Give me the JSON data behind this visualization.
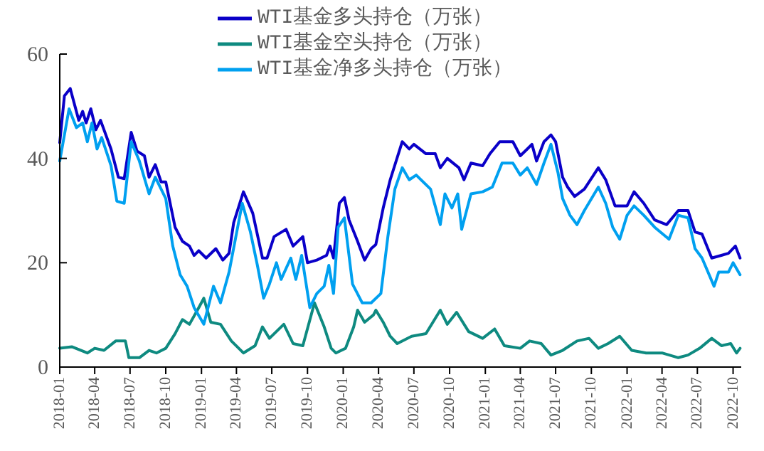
{
  "chart_data": {
    "type": "line",
    "ylim": [
      0,
      60
    ],
    "yticks": [
      0,
      20,
      40,
      60
    ],
    "xlim": [
      "2018-01-01",
      "2022-10-22"
    ],
    "xticks": [
      "2018-01",
      "2018-04",
      "2018-07",
      "2018-10",
      "2019-01",
      "2019-04",
      "2019-07",
      "2019-10",
      "2020-01",
      "2020-04",
      "2020-07",
      "2020-10",
      "2021-01",
      "2021-04",
      "2021-07",
      "2021-10",
      "2022-01",
      "2022-04",
      "2022-07",
      "2022-10"
    ],
    "grid": false,
    "legend": "top",
    "marker": "none",
    "line_style": "solid",
    "series": [
      {
        "name": "WTI基金多头持仓（万张）",
        "color": "#0a00c8",
        "x": [
          "2018-01-01",
          "2018-01-13",
          "2018-01-28",
          "2018-02-19",
          "2018-03-01",
          "2018-03-10",
          "2018-03-22",
          "2018-04-04",
          "2018-04-16",
          "2018-05-13",
          "2018-06-01",
          "2018-06-16",
          "2018-07-04",
          "2018-07-19",
          "2018-08-07",
          "2018-08-19",
          "2018-09-04",
          "2018-09-19",
          "2018-10-01",
          "2018-10-25",
          "2018-11-13",
          "2018-12-01",
          "2018-12-13",
          "2018-12-25",
          "2019-01-13",
          "2019-02-07",
          "2019-02-25",
          "2019-03-13",
          "2019-03-25",
          "2019-04-19",
          "2019-05-13",
          "2019-06-07",
          "2019-06-19",
          "2019-07-07",
          "2019-08-07",
          "2019-08-25",
          "2019-09-19",
          "2019-10-01",
          "2019-10-25",
          "2019-11-19",
          "2019-11-28",
          "2019-12-07",
          "2019-12-22",
          "2020-01-04",
          "2020-01-16",
          "2020-02-07",
          "2020-02-25",
          "2020-03-13",
          "2020-03-25",
          "2020-04-13",
          "2020-05-01",
          "2020-06-01",
          "2020-06-19",
          "2020-07-01",
          "2020-08-01",
          "2020-08-25",
          "2020-09-07",
          "2020-09-25",
          "2020-10-25",
          "2020-11-07",
          "2020-11-25",
          "2020-12-25",
          "2021-01-13",
          "2021-02-07",
          "2021-03-13",
          "2021-04-01",
          "2021-04-19",
          "2021-05-01",
          "2021-05-13",
          "2021-06-01",
          "2021-06-19",
          "2021-07-01",
          "2021-07-19",
          "2021-08-01",
          "2021-08-19",
          "2021-09-13",
          "2021-10-19",
          "2021-11-07",
          "2021-12-01",
          "2022-01-01",
          "2022-01-19",
          "2022-02-13",
          "2022-03-13",
          "2022-04-13",
          "2022-05-13",
          "2022-06-07",
          "2022-06-25",
          "2022-07-13",
          "2022-08-07",
          "2022-09-19",
          "2022-10-07",
          "2022-10-19"
        ],
        "values": [
          43,
          52,
          53.4,
          47.3,
          49,
          46.8,
          49.5,
          45.5,
          47.3,
          41.8,
          36.4,
          36.1,
          45,
          41.4,
          40.5,
          36.4,
          38.8,
          35.5,
          35.5,
          26.8,
          24.1,
          23.2,
          21.4,
          22.3,
          20.9,
          22.7,
          20.5,
          21.8,
          27.7,
          33.6,
          29.5,
          20.9,
          20.9,
          25,
          26.4,
          23.2,
          25,
          20,
          20.5,
          21.4,
          23.2,
          20.9,
          31.4,
          32.5,
          28.2,
          24.1,
          20.5,
          22.7,
          23.5,
          30.5,
          35.9,
          43.2,
          41.8,
          42.7,
          40.9,
          40.9,
          38.2,
          40,
          38.2,
          35.9,
          39.1,
          38.6,
          40.9,
          43.2,
          43.2,
          40.5,
          41.8,
          42.7,
          39.5,
          43.2,
          44.5,
          43.2,
          36.4,
          34.5,
          32.7,
          34.1,
          38.2,
          35.9,
          30.9,
          30.9,
          33.6,
          31.4,
          28.2,
          27.3,
          30,
          30,
          25.9,
          25.5,
          20.9,
          21.8,
          23.2,
          20.9
        ]
      },
      {
        "name": "WTI基金空头持仓（万张）",
        "color": "#0e8a80",
        "x": [
          "2018-01-01",
          "2018-02-01",
          "2018-02-25",
          "2018-03-13",
          "2018-04-01",
          "2018-04-25",
          "2018-05-25",
          "2018-06-19",
          "2018-06-28",
          "2018-07-25",
          "2018-08-19",
          "2018-09-07",
          "2018-10-01",
          "2018-10-25",
          "2018-11-13",
          "2018-12-01",
          "2018-12-25",
          "2019-01-07",
          "2019-01-25",
          "2019-02-19",
          "2019-03-19",
          "2019-04-19",
          "2019-05-19",
          "2019-06-07",
          "2019-06-25",
          "2019-08-01",
          "2019-08-25",
          "2019-09-19",
          "2019-10-19",
          "2019-11-13",
          "2019-12-01",
          "2019-12-13",
          "2020-01-07",
          "2020-01-28",
          "2020-02-07",
          "2020-02-25",
          "2020-03-19",
          "2020-03-25",
          "2020-04-13",
          "2020-05-01",
          "2020-05-19",
          "2020-06-25",
          "2020-08-01",
          "2020-09-07",
          "2020-09-25",
          "2020-10-19",
          "2020-11-19",
          "2020-12-25",
          "2021-01-25",
          "2021-02-19",
          "2021-04-01",
          "2021-04-25",
          "2021-05-25",
          "2021-06-19",
          "2021-07-19",
          "2021-08-25",
          "2021-09-25",
          "2021-10-19",
          "2021-11-13",
          "2021-12-13",
          "2022-01-13",
          "2022-02-19",
          "2022-04-01",
          "2022-05-13",
          "2022-06-07",
          "2022-07-07",
          "2022-08-07",
          "2022-09-01",
          "2022-09-25",
          "2022-10-10",
          "2022-10-19"
        ],
        "values": [
          3.6,
          3.9,
          3.2,
          2.7,
          3.6,
          3.2,
          5,
          5,
          1.8,
          1.8,
          3.2,
          2.7,
          3.6,
          6.4,
          9.1,
          8.2,
          11.4,
          13.2,
          8.6,
          8.2,
          5,
          2.7,
          4.1,
          7.7,
          5.5,
          8.2,
          4.5,
          4.1,
          12.3,
          7.7,
          3.6,
          2.7,
          3.6,
          7.7,
          10.9,
          8.6,
          10,
          10.9,
          8.6,
          5.9,
          4.5,
          5.9,
          6.4,
          10.9,
          8.2,
          10.5,
          6.8,
          5.5,
          7.3,
          4.1,
          3.6,
          5,
          4.5,
          2.3,
          3.2,
          5,
          5.5,
          3.6,
          4.5,
          5.9,
          3.2,
          2.7,
          2.7,
          1.8,
          2.3,
          3.6,
          5.5,
          4.1,
          4.5,
          2.7,
          3.6
        ]
      },
      {
        "name": "WTI基金净多头持仓（万张）",
        "color": "#00a0f0",
        "x": [
          "2018-01-01",
          "2018-01-25",
          "2018-02-13",
          "2018-03-01",
          "2018-03-13",
          "2018-03-25",
          "2018-04-07",
          "2018-04-19",
          "2018-05-13",
          "2018-05-28",
          "2018-06-16",
          "2018-07-04",
          "2018-07-25",
          "2018-08-19",
          "2018-09-04",
          "2018-10-01",
          "2018-10-19",
          "2018-11-07",
          "2018-11-25",
          "2018-12-13",
          "2019-01-07",
          "2019-02-01",
          "2019-02-19",
          "2019-03-13",
          "2019-04-16",
          "2019-05-07",
          "2019-05-25",
          "2019-06-10",
          "2019-06-25",
          "2019-07-13",
          "2019-07-25",
          "2019-08-19",
          "2019-09-01",
          "2019-09-16",
          "2019-10-07",
          "2019-10-25",
          "2019-11-13",
          "2019-11-25",
          "2019-12-07",
          "2019-12-19",
          "2020-01-04",
          "2020-01-25",
          "2020-02-19",
          "2020-03-13",
          "2020-04-07",
          "2020-04-25",
          "2020-05-13",
          "2020-06-01",
          "2020-06-19",
          "2020-07-07",
          "2020-08-13",
          "2020-09-07",
          "2020-09-19",
          "2020-10-07",
          "2020-10-22",
          "2020-11-01",
          "2020-11-25",
          "2020-12-25",
          "2021-01-19",
          "2021-02-13",
          "2021-03-13",
          "2021-04-01",
          "2021-04-19",
          "2021-05-13",
          "2021-06-01",
          "2021-06-19",
          "2021-07-07",
          "2021-07-19",
          "2021-08-07",
          "2021-08-25",
          "2021-09-13",
          "2021-10-19",
          "2021-11-07",
          "2021-11-25",
          "2021-12-13",
          "2022-01-01",
          "2022-01-19",
          "2022-02-13",
          "2022-03-13",
          "2022-04-19",
          "2022-05-13",
          "2022-06-07",
          "2022-06-25",
          "2022-07-13",
          "2022-08-13",
          "2022-08-25",
          "2022-09-19",
          "2022-10-01",
          "2022-10-19"
        ],
        "values": [
          39.5,
          49.5,
          45.9,
          46.8,
          43.2,
          46.8,
          41.8,
          44,
          38.6,
          31.8,
          31.4,
          43.2,
          39.5,
          33.2,
          36.4,
          32.3,
          23.2,
          17.7,
          15.5,
          11.4,
          8.2,
          15.5,
          12.3,
          18.2,
          31.4,
          25.9,
          19.5,
          13.2,
          15.9,
          20,
          16.8,
          20.9,
          16.8,
          21.4,
          11.4,
          14.1,
          15.5,
          19.5,
          14.1,
          26.8,
          28.6,
          15.9,
          12.3,
          12.3,
          14.1,
          25,
          34.1,
          38.2,
          35.9,
          36.8,
          34.1,
          27.3,
          33.2,
          30.5,
          33.2,
          26.4,
          33.2,
          33.6,
          34.5,
          39.1,
          39.1,
          36.8,
          38.2,
          35,
          39.1,
          42.7,
          37.3,
          32.3,
          29.1,
          27.3,
          30,
          34.5,
          31.4,
          26.8,
          24.5,
          29.1,
          30.9,
          29.1,
          26.8,
          24.5,
          29.1,
          28.6,
          22.7,
          20.9,
          15.5,
          18.2,
          18.2,
          20,
          17.7
        ]
      }
    ]
  }
}
